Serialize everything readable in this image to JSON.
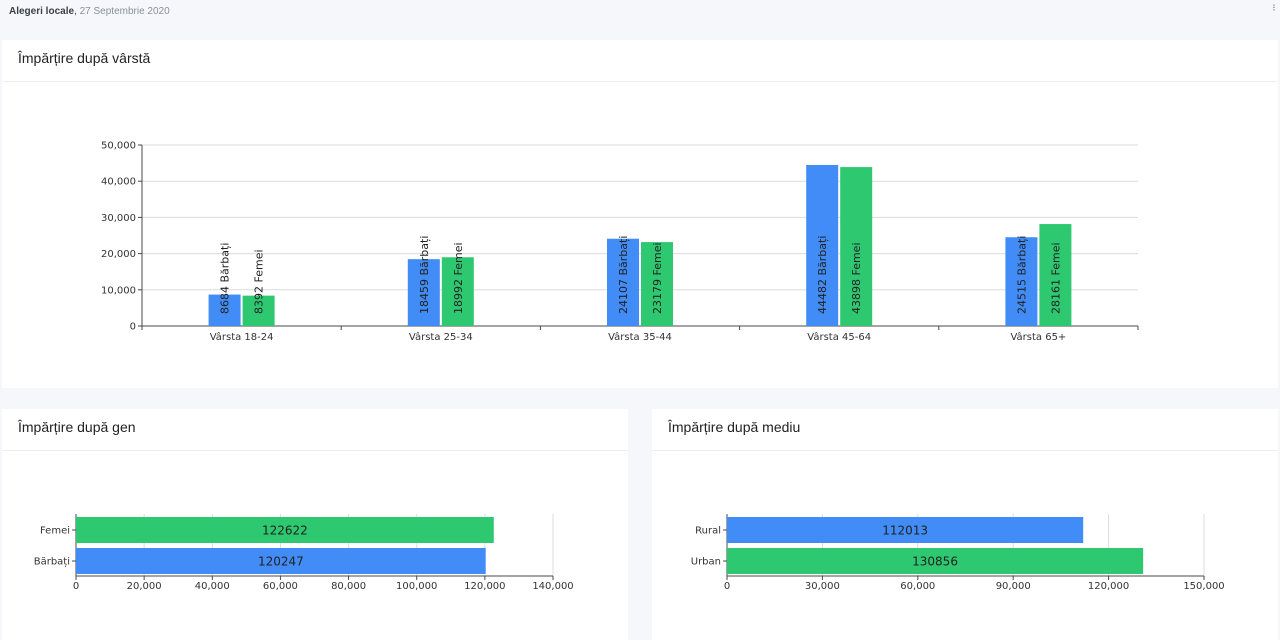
{
  "header": {
    "app": "Alegeri locale",
    "date": "27 Septembrie 2020"
  },
  "colors": {
    "male": "#418cf7",
    "female": "#2ec870",
    "axis": "#4a4a4a",
    "grid": "#dcdcdc"
  },
  "chart_data": [
    {
      "type": "bar",
      "title": "Împărțire după vârstă",
      "categories": [
        "Vârsta 18-24",
        "Vârsta 25-34",
        "Vârsta 35-44",
        "Vârsta 45-64",
        "Vârsta 65+"
      ],
      "series": [
        {
          "name": "Bărbați",
          "values": [
            8684,
            18459,
            24107,
            44482,
            24515
          ],
          "labels": [
            "8684 Bărbați",
            "18459 Bărbați",
            "24107 Bărbați",
            "44482 Bărbați",
            "24515 Bărbați"
          ]
        },
        {
          "name": "Femei",
          "values": [
            8392,
            18992,
            23179,
            43898,
            28161
          ],
          "labels": [
            "8392 Femei",
            "18992 Femei",
            "23179 Femei",
            "43898 Femei",
            "28161 Femei"
          ]
        }
      ],
      "ylim": [
        0,
        50000
      ],
      "yticks": [
        "0",
        "10,000",
        "20,000",
        "30,000",
        "40,000",
        "50,000"
      ],
      "grid": true
    },
    {
      "type": "bar",
      "orientation": "horizontal",
      "title": "Împărțire după gen",
      "categories": [
        "Femei",
        "Bărbați"
      ],
      "values": [
        122622,
        120247
      ],
      "value_labels": [
        "122622",
        "120247"
      ],
      "xlim": [
        0,
        140000
      ],
      "xticks": [
        "0",
        "20,000",
        "40,000",
        "60,000",
        "80,000",
        "100,000",
        "120,000",
        "140,000"
      ]
    },
    {
      "type": "bar",
      "orientation": "horizontal",
      "title": "Împărțire după mediu",
      "categories": [
        "Rural",
        "Urban"
      ],
      "values": [
        112013,
        130856
      ],
      "value_labels": [
        "112013",
        "130856"
      ],
      "xlim": [
        0,
        150000
      ],
      "xticks": [
        "0",
        "30,000",
        "60,000",
        "90,000",
        "120,000",
        "150,000"
      ]
    }
  ]
}
